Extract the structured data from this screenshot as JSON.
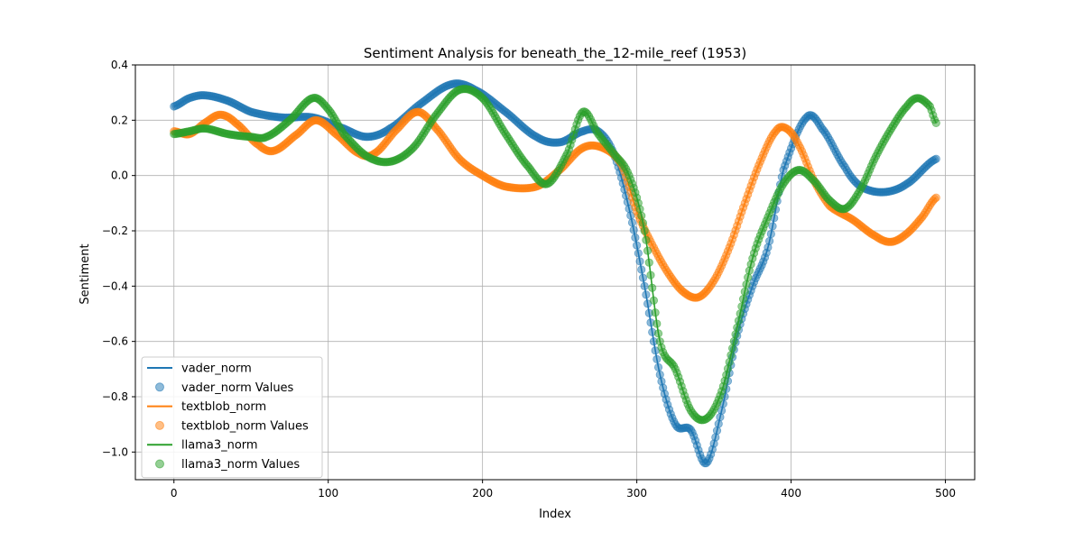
{
  "chart_data": {
    "type": "line",
    "title": "Sentiment Analysis for beneath_the_12-mile_reef (1953)",
    "xlabel": "Index",
    "ylabel": "Sentiment",
    "xlim": [
      -25,
      519
    ],
    "ylim": [
      -1.1,
      0.4
    ],
    "xticks": [
      0,
      100,
      200,
      300,
      400,
      500
    ],
    "yticks": [
      0.4,
      0.2,
      0.0,
      -0.2,
      -0.4,
      -0.6,
      -0.8,
      -1.0
    ],
    "grid": true,
    "legend_position": "lower-left",
    "n_points": 495,
    "series": [
      {
        "name": "vader_norm",
        "scatter_name": "vader_norm Values",
        "color": "#1f77b4",
        "points": [
          [
            0,
            0.25
          ],
          [
            10,
            0.28
          ],
          [
            20,
            0.29
          ],
          [
            35,
            0.27
          ],
          [
            50,
            0.23
          ],
          [
            70,
            0.21
          ],
          [
            90,
            0.21
          ],
          [
            110,
            0.17
          ],
          [
            125,
            0.14
          ],
          [
            140,
            0.17
          ],
          [
            160,
            0.26
          ],
          [
            180,
            0.33
          ],
          [
            195,
            0.31
          ],
          [
            215,
            0.23
          ],
          [
            235,
            0.14
          ],
          [
            250,
            0.12
          ],
          [
            265,
            0.16
          ],
          [
            275,
            0.16
          ],
          [
            285,
            0.08
          ],
          [
            295,
            -0.12
          ],
          [
            305,
            -0.4
          ],
          [
            315,
            -0.72
          ],
          [
            325,
            -0.9
          ],
          [
            335,
            -0.92
          ],
          [
            345,
            -1.04
          ],
          [
            355,
            -0.85
          ],
          [
            365,
            -0.58
          ],
          [
            375,
            -0.4
          ],
          [
            385,
            -0.26
          ],
          [
            395,
            0.02
          ],
          [
            410,
            0.21
          ],
          [
            420,
            0.17
          ],
          [
            435,
            0.03
          ],
          [
            445,
            -0.04
          ],
          [
            460,
            -0.06
          ],
          [
            475,
            -0.03
          ],
          [
            494,
            0.06
          ]
        ]
      },
      {
        "name": "textblob_norm",
        "scatter_name": "textblob_norm Values",
        "color": "#ff7f0e",
        "points": [
          [
            0,
            0.16
          ],
          [
            10,
            0.15
          ],
          [
            20,
            0.19
          ],
          [
            30,
            0.22
          ],
          [
            40,
            0.19
          ],
          [
            55,
            0.11
          ],
          [
            65,
            0.09
          ],
          [
            80,
            0.15
          ],
          [
            92,
            0.2
          ],
          [
            105,
            0.15
          ],
          [
            120,
            0.08
          ],
          [
            130,
            0.08
          ],
          [
            145,
            0.17
          ],
          [
            158,
            0.23
          ],
          [
            170,
            0.17
          ],
          [
            185,
            0.06
          ],
          [
            200,
            0.0
          ],
          [
            215,
            -0.04
          ],
          [
            235,
            -0.04
          ],
          [
            250,
            0.02
          ],
          [
            265,
            0.1
          ],
          [
            278,
            0.1
          ],
          [
            290,
            0.04
          ],
          [
            300,
            -0.13
          ],
          [
            310,
            -0.25
          ],
          [
            320,
            -0.35
          ],
          [
            330,
            -0.42
          ],
          [
            340,
            -0.44
          ],
          [
            350,
            -0.38
          ],
          [
            360,
            -0.26
          ],
          [
            370,
            -0.1
          ],
          [
            380,
            0.05
          ],
          [
            390,
            0.16
          ],
          [
            397,
            0.17
          ],
          [
            405,
            0.11
          ],
          [
            415,
            -0.02
          ],
          [
            425,
            -0.11
          ],
          [
            440,
            -0.16
          ],
          [
            455,
            -0.22
          ],
          [
            465,
            -0.24
          ],
          [
            475,
            -0.21
          ],
          [
            485,
            -0.15
          ],
          [
            494,
            -0.08
          ]
        ]
      },
      {
        "name": "llama3_norm",
        "scatter_name": "llama3_norm Values",
        "color": "#2ca02c",
        "points": [
          [
            0,
            0.15
          ],
          [
            10,
            0.16
          ],
          [
            20,
            0.17
          ],
          [
            35,
            0.15
          ],
          [
            50,
            0.14
          ],
          [
            60,
            0.14
          ],
          [
            75,
            0.2
          ],
          [
            90,
            0.28
          ],
          [
            100,
            0.24
          ],
          [
            110,
            0.15
          ],
          [
            125,
            0.07
          ],
          [
            140,
            0.05
          ],
          [
            155,
            0.1
          ],
          [
            170,
            0.22
          ],
          [
            185,
            0.31
          ],
          [
            200,
            0.28
          ],
          [
            215,
            0.15
          ],
          [
            230,
            0.03
          ],
          [
            242,
            -0.03
          ],
          [
            255,
            0.08
          ],
          [
            265,
            0.23
          ],
          [
            275,
            0.15
          ],
          [
            285,
            0.08
          ],
          [
            295,
            0.0
          ],
          [
            305,
            -0.2
          ],
          [
            315,
            -0.6
          ],
          [
            325,
            -0.7
          ],
          [
            335,
            -0.85
          ],
          [
            345,
            -0.88
          ],
          [
            355,
            -0.78
          ],
          [
            365,
            -0.55
          ],
          [
            375,
            -0.3
          ],
          [
            385,
            -0.15
          ],
          [
            395,
            -0.03
          ],
          [
            405,
            0.02
          ],
          [
            415,
            -0.02
          ],
          [
            425,
            -0.09
          ],
          [
            435,
            -0.12
          ],
          [
            445,
            -0.05
          ],
          [
            455,
            0.07
          ],
          [
            465,
            0.17
          ],
          [
            475,
            0.25
          ],
          [
            482,
            0.28
          ],
          [
            490,
            0.25
          ],
          [
            494,
            0.19
          ]
        ]
      }
    ]
  }
}
